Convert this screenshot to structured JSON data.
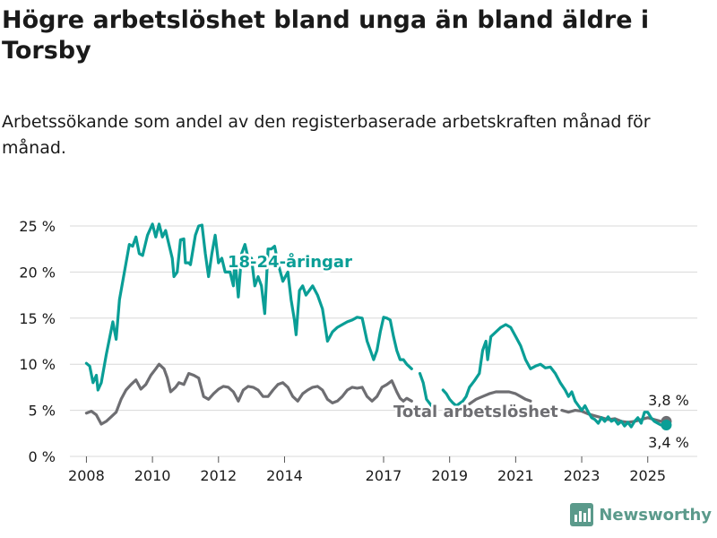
{
  "header": {
    "title": "Högre arbetslöshet bland unga än bland äldre i Torsby",
    "subtitle": "Arbetssökande som andel av den registerbaserade arbetskraften månad för månad."
  },
  "brand": {
    "name": "Newsworthy"
  },
  "colors": {
    "youth": "#0a9e96",
    "total": "#6e6e72",
    "grid": "#d8d8d8",
    "text": "#1a1a1a"
  },
  "chart_data": {
    "type": "line",
    "title": "Högre arbetslöshet bland unga än bland äldre i Torsby",
    "subtitle": "Arbetssökande som andel av den registerbaserade arbetskraften månad för månad.",
    "y_ticks": [
      "0 %",
      "5 %",
      "10 %",
      "15 %",
      "20 %",
      "25 %"
    ],
    "y_tick_values": [
      0,
      5,
      10,
      15,
      20,
      25
    ],
    "x_ticks": [
      "2008",
      "2010",
      "2012",
      "2014",
      "2017",
      "2019",
      "2021",
      "2023",
      "2025"
    ],
    "x_tick_values": [
      2008.0,
      2010.0,
      2012.0,
      2014.0,
      2017.0,
      2019.0,
      2021.0,
      2023.0,
      2025.0
    ],
    "ylim": [
      0,
      25
    ],
    "xlim": [
      2007.5,
      2026.5
    ],
    "grid": true,
    "series": [
      {
        "name": "18-24-åringar",
        "points": [
          [
            2008.0,
            10.1
          ],
          [
            2008.1,
            9.8
          ],
          [
            2008.2,
            8.0
          ],
          [
            2008.3,
            8.8
          ],
          [
            2008.35,
            7.2
          ],
          [
            2008.45,
            8.0
          ],
          [
            2008.6,
            11.0
          ],
          [
            2008.8,
            14.6
          ],
          [
            2008.9,
            12.7
          ],
          [
            2009.0,
            17.0
          ],
          [
            2009.15,
            20.0
          ],
          [
            2009.3,
            23.0
          ],
          [
            2009.4,
            22.8
          ],
          [
            2009.5,
            23.8
          ],
          [
            2009.6,
            22.0
          ],
          [
            2009.7,
            21.8
          ],
          [
            2009.85,
            24.0
          ],
          [
            2010.0,
            25.2
          ],
          [
            2010.1,
            23.8
          ],
          [
            2010.2,
            25.2
          ],
          [
            2010.3,
            23.8
          ],
          [
            2010.4,
            24.5
          ],
          [
            2010.5,
            23.0
          ],
          [
            2010.6,
            21.5
          ],
          [
            2010.65,
            19.5
          ],
          [
            2010.75,
            20.0
          ],
          [
            2010.85,
            23.5
          ],
          [
            2010.95,
            23.6
          ],
          [
            2011.0,
            21.0
          ],
          [
            2011.1,
            21.0
          ],
          [
            2011.15,
            20.8
          ],
          [
            2011.3,
            24.0
          ],
          [
            2011.4,
            25.0
          ],
          [
            2011.5,
            25.1
          ],
          [
            2011.6,
            22.0
          ],
          [
            2011.7,
            19.5
          ],
          [
            2011.8,
            22.0
          ],
          [
            2011.9,
            24.0
          ],
          [
            2012.0,
            21.0
          ],
          [
            2012.1,
            21.5
          ],
          [
            2012.2,
            20.0
          ],
          [
            2012.35,
            20.0
          ],
          [
            2012.45,
            18.5
          ],
          [
            2012.5,
            21.5
          ],
          [
            2012.6,
            17.3
          ],
          [
            2012.7,
            22.0
          ],
          [
            2012.8,
            23.0
          ],
          [
            2012.9,
            21.5
          ],
          [
            2013.0,
            21.5
          ],
          [
            2013.1,
            18.5
          ],
          [
            2013.2,
            19.5
          ],
          [
            2013.3,
            18.5
          ],
          [
            2013.4,
            15.5
          ],
          [
            2013.5,
            22.5
          ],
          [
            2013.6,
            22.5
          ],
          [
            2013.7,
            22.8
          ],
          [
            2013.8,
            21.0
          ],
          [
            2013.95,
            19.0
          ],
          [
            2014.1,
            20.0
          ],
          [
            2014.2,
            17.0
          ],
          [
            2014.3,
            14.8
          ],
          [
            2014.35,
            13.2
          ],
          [
            2014.45,
            18.0
          ],
          [
            2014.55,
            18.5
          ],
          [
            2014.65,
            17.5
          ],
          [
            2014.75,
            18.0
          ],
          [
            2014.85,
            18.5
          ],
          [
            2015.0,
            17.5
          ],
          [
            2015.15,
            16.0
          ],
          [
            2015.3,
            12.5
          ],
          [
            2015.45,
            13.5
          ],
          [
            2015.6,
            14.0
          ],
          [
            2015.75,
            14.3
          ],
          [
            2015.9,
            14.6
          ],
          [
            2016.05,
            14.8
          ],
          [
            2016.2,
            15.1
          ],
          [
            2016.35,
            15.0
          ],
          [
            2016.5,
            12.5
          ],
          [
            2016.6,
            11.5
          ],
          [
            2016.7,
            10.5
          ],
          [
            2016.8,
            11.5
          ],
          [
            2016.9,
            13.5
          ],
          [
            2017.0,
            15.1
          ],
          [
            2017.1,
            15.0
          ],
          [
            2017.2,
            14.8
          ],
          [
            2017.3,
            13.0
          ],
          [
            2017.4,
            11.5
          ],
          [
            2017.5,
            10.5
          ],
          [
            2017.6,
            10.5
          ],
          [
            2017.7,
            10.0
          ],
          [
            2017.85,
            9.5
          ]
        ],
        "points_2": [
          [
            2018.1,
            9.0
          ],
          [
            2018.2,
            8.0
          ],
          [
            2018.3,
            6.2
          ],
          [
            2018.45,
            5.5
          ]
        ],
        "points_3": [
          [
            2018.8,
            7.2
          ],
          [
            2018.9,
            6.8
          ],
          [
            2019.0,
            6.2
          ],
          [
            2019.1,
            5.8
          ],
          [
            2019.2,
            5.5
          ],
          [
            2019.4,
            6.0
          ],
          [
            2019.5,
            6.5
          ],
          [
            2019.6,
            7.5
          ],
          [
            2019.75,
            8.2
          ],
          [
            2019.9,
            9.0
          ],
          [
            2020.0,
            11.5
          ],
          [
            2020.1,
            12.5
          ],
          [
            2020.15,
            10.5
          ],
          [
            2020.25,
            13.0
          ],
          [
            2020.4,
            13.5
          ],
          [
            2020.55,
            14.0
          ],
          [
            2020.7,
            14.3
          ],
          [
            2020.85,
            14.0
          ],
          [
            2021.0,
            13.0
          ],
          [
            2021.15,
            12.0
          ],
          [
            2021.3,
            10.5
          ],
          [
            2021.45,
            9.5
          ],
          [
            2021.6,
            9.8
          ],
          [
            2021.75,
            10.0
          ],
          [
            2021.9,
            9.6
          ],
          [
            2022.05,
            9.7
          ],
          [
            2022.2,
            9.0
          ],
          [
            2022.35,
            8.0
          ],
          [
            2022.5,
            7.2
          ],
          [
            2022.6,
            6.5
          ],
          [
            2022.7,
            7.0
          ],
          [
            2022.8,
            6.0
          ],
          [
            2022.9,
            5.5
          ],
          [
            2023.0,
            5.0
          ],
          [
            2023.1,
            5.5
          ],
          [
            2023.2,
            4.8
          ],
          [
            2023.3,
            4.2
          ],
          [
            2023.4,
            4.0
          ],
          [
            2023.5,
            3.6
          ],
          [
            2023.6,
            4.2
          ],
          [
            2023.7,
            3.8
          ],
          [
            2023.8,
            4.3
          ],
          [
            2023.9,
            3.8
          ],
          [
            2024.0,
            4.0
          ],
          [
            2024.1,
            3.5
          ],
          [
            2024.2,
            3.8
          ],
          [
            2024.3,
            3.3
          ],
          [
            2024.4,
            3.7
          ],
          [
            2024.5,
            3.2
          ],
          [
            2024.6,
            3.8
          ],
          [
            2024.7,
            4.2
          ],
          [
            2024.8,
            3.6
          ],
          [
            2024.9,
            4.8
          ],
          [
            2025.0,
            4.8
          ],
          [
            2025.1,
            4.2
          ],
          [
            2025.2,
            3.8
          ],
          [
            2025.3,
            3.6
          ],
          [
            2025.4,
            3.4
          ]
        ]
      },
      {
        "name": "Total arbetslöshet",
        "points": [
          [
            2008.0,
            4.7
          ],
          [
            2008.15,
            4.9
          ],
          [
            2008.3,
            4.5
          ],
          [
            2008.45,
            3.5
          ],
          [
            2008.6,
            3.8
          ],
          [
            2008.75,
            4.3
          ],
          [
            2008.9,
            4.8
          ],
          [
            2009.05,
            6.2
          ],
          [
            2009.2,
            7.2
          ],
          [
            2009.35,
            7.8
          ],
          [
            2009.5,
            8.3
          ],
          [
            2009.65,
            7.3
          ],
          [
            2009.8,
            7.8
          ],
          [
            2009.95,
            8.8
          ],
          [
            2010.1,
            9.5
          ],
          [
            2010.2,
            10.0
          ],
          [
            2010.35,
            9.5
          ],
          [
            2010.45,
            8.5
          ],
          [
            2010.55,
            7.0
          ],
          [
            2010.7,
            7.5
          ],
          [
            2010.8,
            8.0
          ],
          [
            2010.95,
            7.8
          ],
          [
            2011.1,
            9.0
          ],
          [
            2011.25,
            8.8
          ],
          [
            2011.4,
            8.5
          ],
          [
            2011.55,
            6.5
          ],
          [
            2011.7,
            6.2
          ],
          [
            2011.85,
            6.8
          ],
          [
            2012.0,
            7.3
          ],
          [
            2012.15,
            7.6
          ],
          [
            2012.3,
            7.5
          ],
          [
            2012.45,
            7.0
          ],
          [
            2012.6,
            6.0
          ],
          [
            2012.75,
            7.2
          ],
          [
            2012.9,
            7.6
          ],
          [
            2013.05,
            7.5
          ],
          [
            2013.2,
            7.2
          ],
          [
            2013.35,
            6.5
          ],
          [
            2013.5,
            6.5
          ],
          [
            2013.65,
            7.2
          ],
          [
            2013.8,
            7.8
          ],
          [
            2013.95,
            8.0
          ],
          [
            2014.1,
            7.5
          ],
          [
            2014.25,
            6.5
          ],
          [
            2014.4,
            6.0
          ],
          [
            2014.55,
            6.8
          ],
          [
            2014.7,
            7.2
          ],
          [
            2014.85,
            7.5
          ],
          [
            2015.0,
            7.6
          ],
          [
            2015.15,
            7.2
          ],
          [
            2015.3,
            6.2
          ],
          [
            2015.45,
            5.8
          ],
          [
            2015.6,
            6.0
          ],
          [
            2015.75,
            6.5
          ],
          [
            2015.9,
            7.2
          ],
          [
            2016.05,
            7.5
          ],
          [
            2016.2,
            7.4
          ],
          [
            2016.35,
            7.5
          ],
          [
            2016.5,
            6.5
          ],
          [
            2016.65,
            6.0
          ],
          [
            2016.8,
            6.5
          ],
          [
            2016.95,
            7.5
          ],
          [
            2017.1,
            7.8
          ],
          [
            2017.25,
            8.2
          ],
          [
            2017.4,
            7.0
          ],
          [
            2017.5,
            6.3
          ],
          [
            2017.6,
            6.0
          ],
          [
            2017.7,
            6.3
          ],
          [
            2017.85,
            6.0
          ]
        ],
        "points_2": [
          [
            2019.6,
            5.7
          ],
          [
            2019.8,
            6.2
          ],
          [
            2020.0,
            6.5
          ],
          [
            2020.2,
            6.8
          ],
          [
            2020.4,
            7.0
          ],
          [
            2020.6,
            7.0
          ],
          [
            2020.8,
            7.0
          ],
          [
            2021.0,
            6.8
          ],
          [
            2021.15,
            6.5
          ],
          [
            2021.3,
            6.2
          ],
          [
            2021.45,
            6.0
          ]
        ],
        "points_3": [
          [
            2022.4,
            5.0
          ],
          [
            2022.6,
            4.8
          ],
          [
            2022.8,
            5.0
          ],
          [
            2023.0,
            4.9
          ],
          [
            2023.2,
            4.6
          ],
          [
            2023.4,
            4.4
          ],
          [
            2023.6,
            4.2
          ],
          [
            2023.8,
            4.0
          ],
          [
            2024.0,
            4.1
          ],
          [
            2024.2,
            3.8
          ],
          [
            2024.4,
            3.7
          ],
          [
            2024.6,
            3.8
          ],
          [
            2024.8,
            4.0
          ],
          [
            2025.0,
            4.2
          ],
          [
            2025.2,
            4.0
          ],
          [
            2025.4,
            3.8
          ]
        ]
      }
    ],
    "annotations": [
      {
        "text": "18-24-åringar",
        "series": "18-24-åringar"
      },
      {
        "text": "Total arbetslöshet",
        "series": "Total arbetslöshet"
      },
      {
        "text": "3,8 %",
        "value": 3.8,
        "series": "Total arbetslöshet"
      },
      {
        "text": "3,4 %",
        "value": 3.4,
        "series": "18-24-åringar"
      }
    ]
  }
}
